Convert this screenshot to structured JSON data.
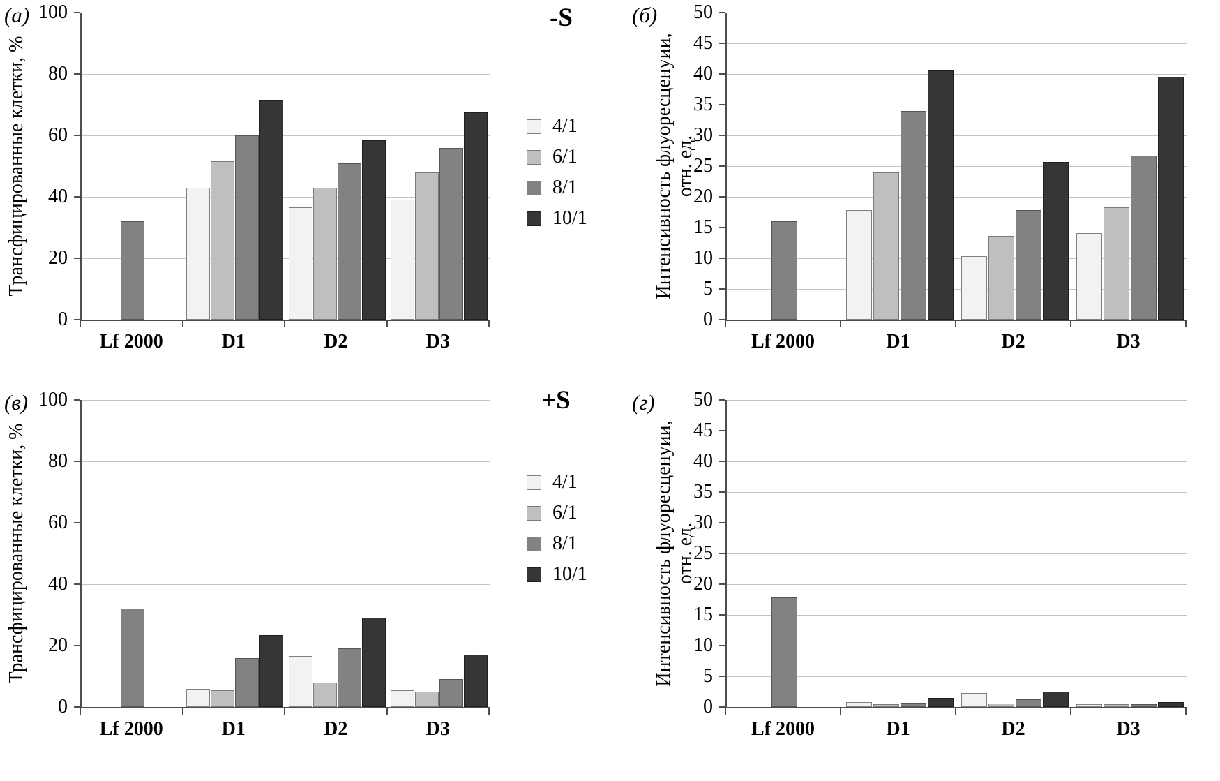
{
  "figure": {
    "annotations": {
      "top": "-S",
      "bottom": "+S"
    }
  },
  "legend": {
    "items": [
      {
        "label": "4/1",
        "fill": "#f2f2f2",
        "border": "#808080"
      },
      {
        "label": "6/1",
        "fill": "#bfbfbf",
        "border": "#7a7a7a"
      },
      {
        "label": "8/1",
        "fill": "#828282",
        "border": "#565656"
      },
      {
        "label": "10/1",
        "fill": "#363636",
        "border": "#1f1f1f"
      }
    ]
  },
  "chart_data": [
    {
      "id": "a",
      "panel_label": "(а)",
      "type": "bar",
      "ylabel_lines": [
        "Трансфицированные клетки, %"
      ],
      "ylim": [
        0,
        100
      ],
      "yticks": [
        0,
        20,
        40,
        60,
        80,
        100
      ],
      "grid": true,
      "legend_position": "center-column",
      "categories": [
        "Lf 2000",
        "D1",
        "D2",
        "D3"
      ],
      "series": [
        {
          "name": "4/1",
          "values": [
            null,
            43,
            36.5,
            39
          ]
        },
        {
          "name": "6/1",
          "values": [
            null,
            51.5,
            43,
            48
          ]
        },
        {
          "name": "8/1",
          "values": [
            32,
            60,
            51,
            56
          ]
        },
        {
          "name": "10/1",
          "values": [
            null,
            71.5,
            58.5,
            67.5
          ]
        }
      ]
    },
    {
      "id": "b",
      "panel_label": "(б)",
      "type": "bar",
      "ylabel_lines": [
        "Интенсивность флуоресценуии,",
        "отн. ед."
      ],
      "ylim": [
        0,
        50
      ],
      "yticks": [
        0,
        5,
        10,
        15,
        20,
        25,
        30,
        35,
        40,
        45,
        50
      ],
      "grid": true,
      "legend_position": "center-column",
      "categories": [
        "Lf 2000",
        "D1",
        "D2",
        "D3"
      ],
      "series": [
        {
          "name": "4/1",
          "values": [
            null,
            17.8,
            10.3,
            14.1
          ]
        },
        {
          "name": "6/1",
          "values": [
            null,
            24,
            13.6,
            18.3
          ]
        },
        {
          "name": "8/1",
          "values": [
            16,
            34,
            17.8,
            26.7
          ]
        },
        {
          "name": "10/1",
          "values": [
            null,
            40.6,
            25.7,
            39.5
          ]
        }
      ]
    },
    {
      "id": "v",
      "panel_label": "(в)",
      "type": "bar",
      "ylabel_lines": [
        "Трансфицированные клетки, %"
      ],
      "ylim": [
        0,
        100
      ],
      "yticks": [
        0,
        20,
        40,
        60,
        80,
        100
      ],
      "grid": true,
      "legend_position": "center-column",
      "categories": [
        "Lf 2000",
        "D1",
        "D2",
        "D3"
      ],
      "series": [
        {
          "name": "4/1",
          "values": [
            null,
            6,
            16.5,
            5.5
          ]
        },
        {
          "name": "6/1",
          "values": [
            null,
            5.5,
            8,
            5
          ]
        },
        {
          "name": "8/1",
          "values": [
            32,
            16,
            19,
            9
          ]
        },
        {
          "name": "10/1",
          "values": [
            null,
            23.5,
            29,
            17
          ]
        }
      ]
    },
    {
      "id": "g",
      "panel_label": "(г)",
      "type": "bar",
      "ylabel_lines": [
        "Интенсивность флуоресценуии,",
        "отн. ед."
      ],
      "ylim": [
        0,
        50
      ],
      "yticks": [
        0,
        5,
        10,
        15,
        20,
        25,
        30,
        35,
        40,
        45,
        50
      ],
      "grid": true,
      "legend_position": "center-column",
      "categories": [
        "Lf 2000",
        "D1",
        "D2",
        "D3"
      ],
      "series": [
        {
          "name": "4/1",
          "values": [
            null,
            0.8,
            2.3,
            0.5
          ]
        },
        {
          "name": "6/1",
          "values": [
            null,
            0.5,
            0.6,
            0.5
          ]
        },
        {
          "name": "8/1",
          "values": [
            17.8,
            0.7,
            1.2,
            0.5
          ]
        },
        {
          "name": "10/1",
          "values": [
            null,
            1.5,
            2.5,
            0.8
          ]
        }
      ]
    }
  ]
}
